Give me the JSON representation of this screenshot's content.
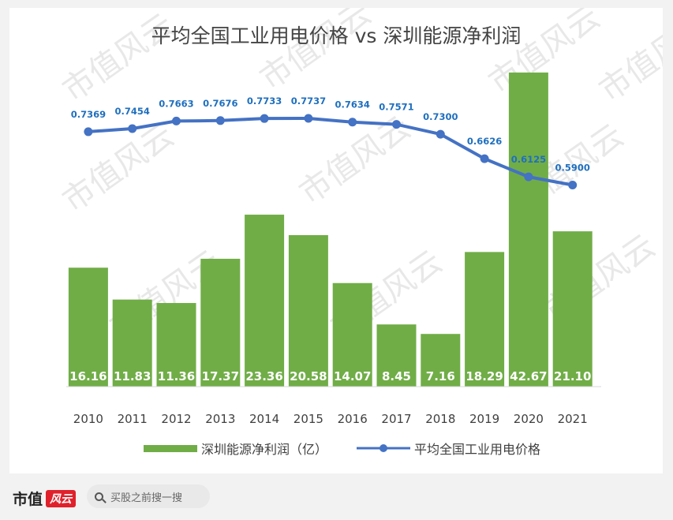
{
  "chart_data": {
    "type": "bar+line",
    "title": "平均全国工业用电价格 vs 深圳能源净利润",
    "categories": [
      "2010",
      "2011",
      "2012",
      "2013",
      "2014",
      "2015",
      "2016",
      "2017",
      "2018",
      "2019",
      "2020",
      "2021"
    ],
    "series": [
      {
        "name": "深圳能源净利润（亿）",
        "type": "bar",
        "color": "#70ad47",
        "values": [
          16.16,
          11.83,
          11.36,
          17.37,
          23.36,
          20.58,
          14.07,
          8.45,
          7.16,
          18.29,
          42.67,
          21.1
        ],
        "labels": [
          "16.16",
          "11.83",
          "11.36",
          "17.37",
          "23.36",
          "20.58",
          "14.07",
          "8.45",
          "7.16",
          "18.29",
          "42.67",
          "21.10"
        ]
      },
      {
        "name": "平均全国工业用电价格",
        "type": "line",
        "color": "#4472c4",
        "values": [
          0.7369,
          0.7454,
          0.7663,
          0.7676,
          0.7733,
          0.7737,
          0.7634,
          0.7571,
          0.73,
          0.6626,
          0.6125,
          0.59
        ],
        "labels": [
          "0.7369",
          "0.7454",
          "0.7663",
          "0.7676",
          "0.7733",
          "0.7737",
          "0.7634",
          "0.7571",
          "0.7300",
          "0.6626",
          "0.6125",
          "0.5900"
        ]
      }
    ],
    "grid": false,
    "legend_position": "bottom"
  },
  "watermark_text": "市值风云",
  "footer": {
    "brand": "市值",
    "brand_badge": "风云",
    "search_placeholder": "买股之前搜一搜"
  }
}
